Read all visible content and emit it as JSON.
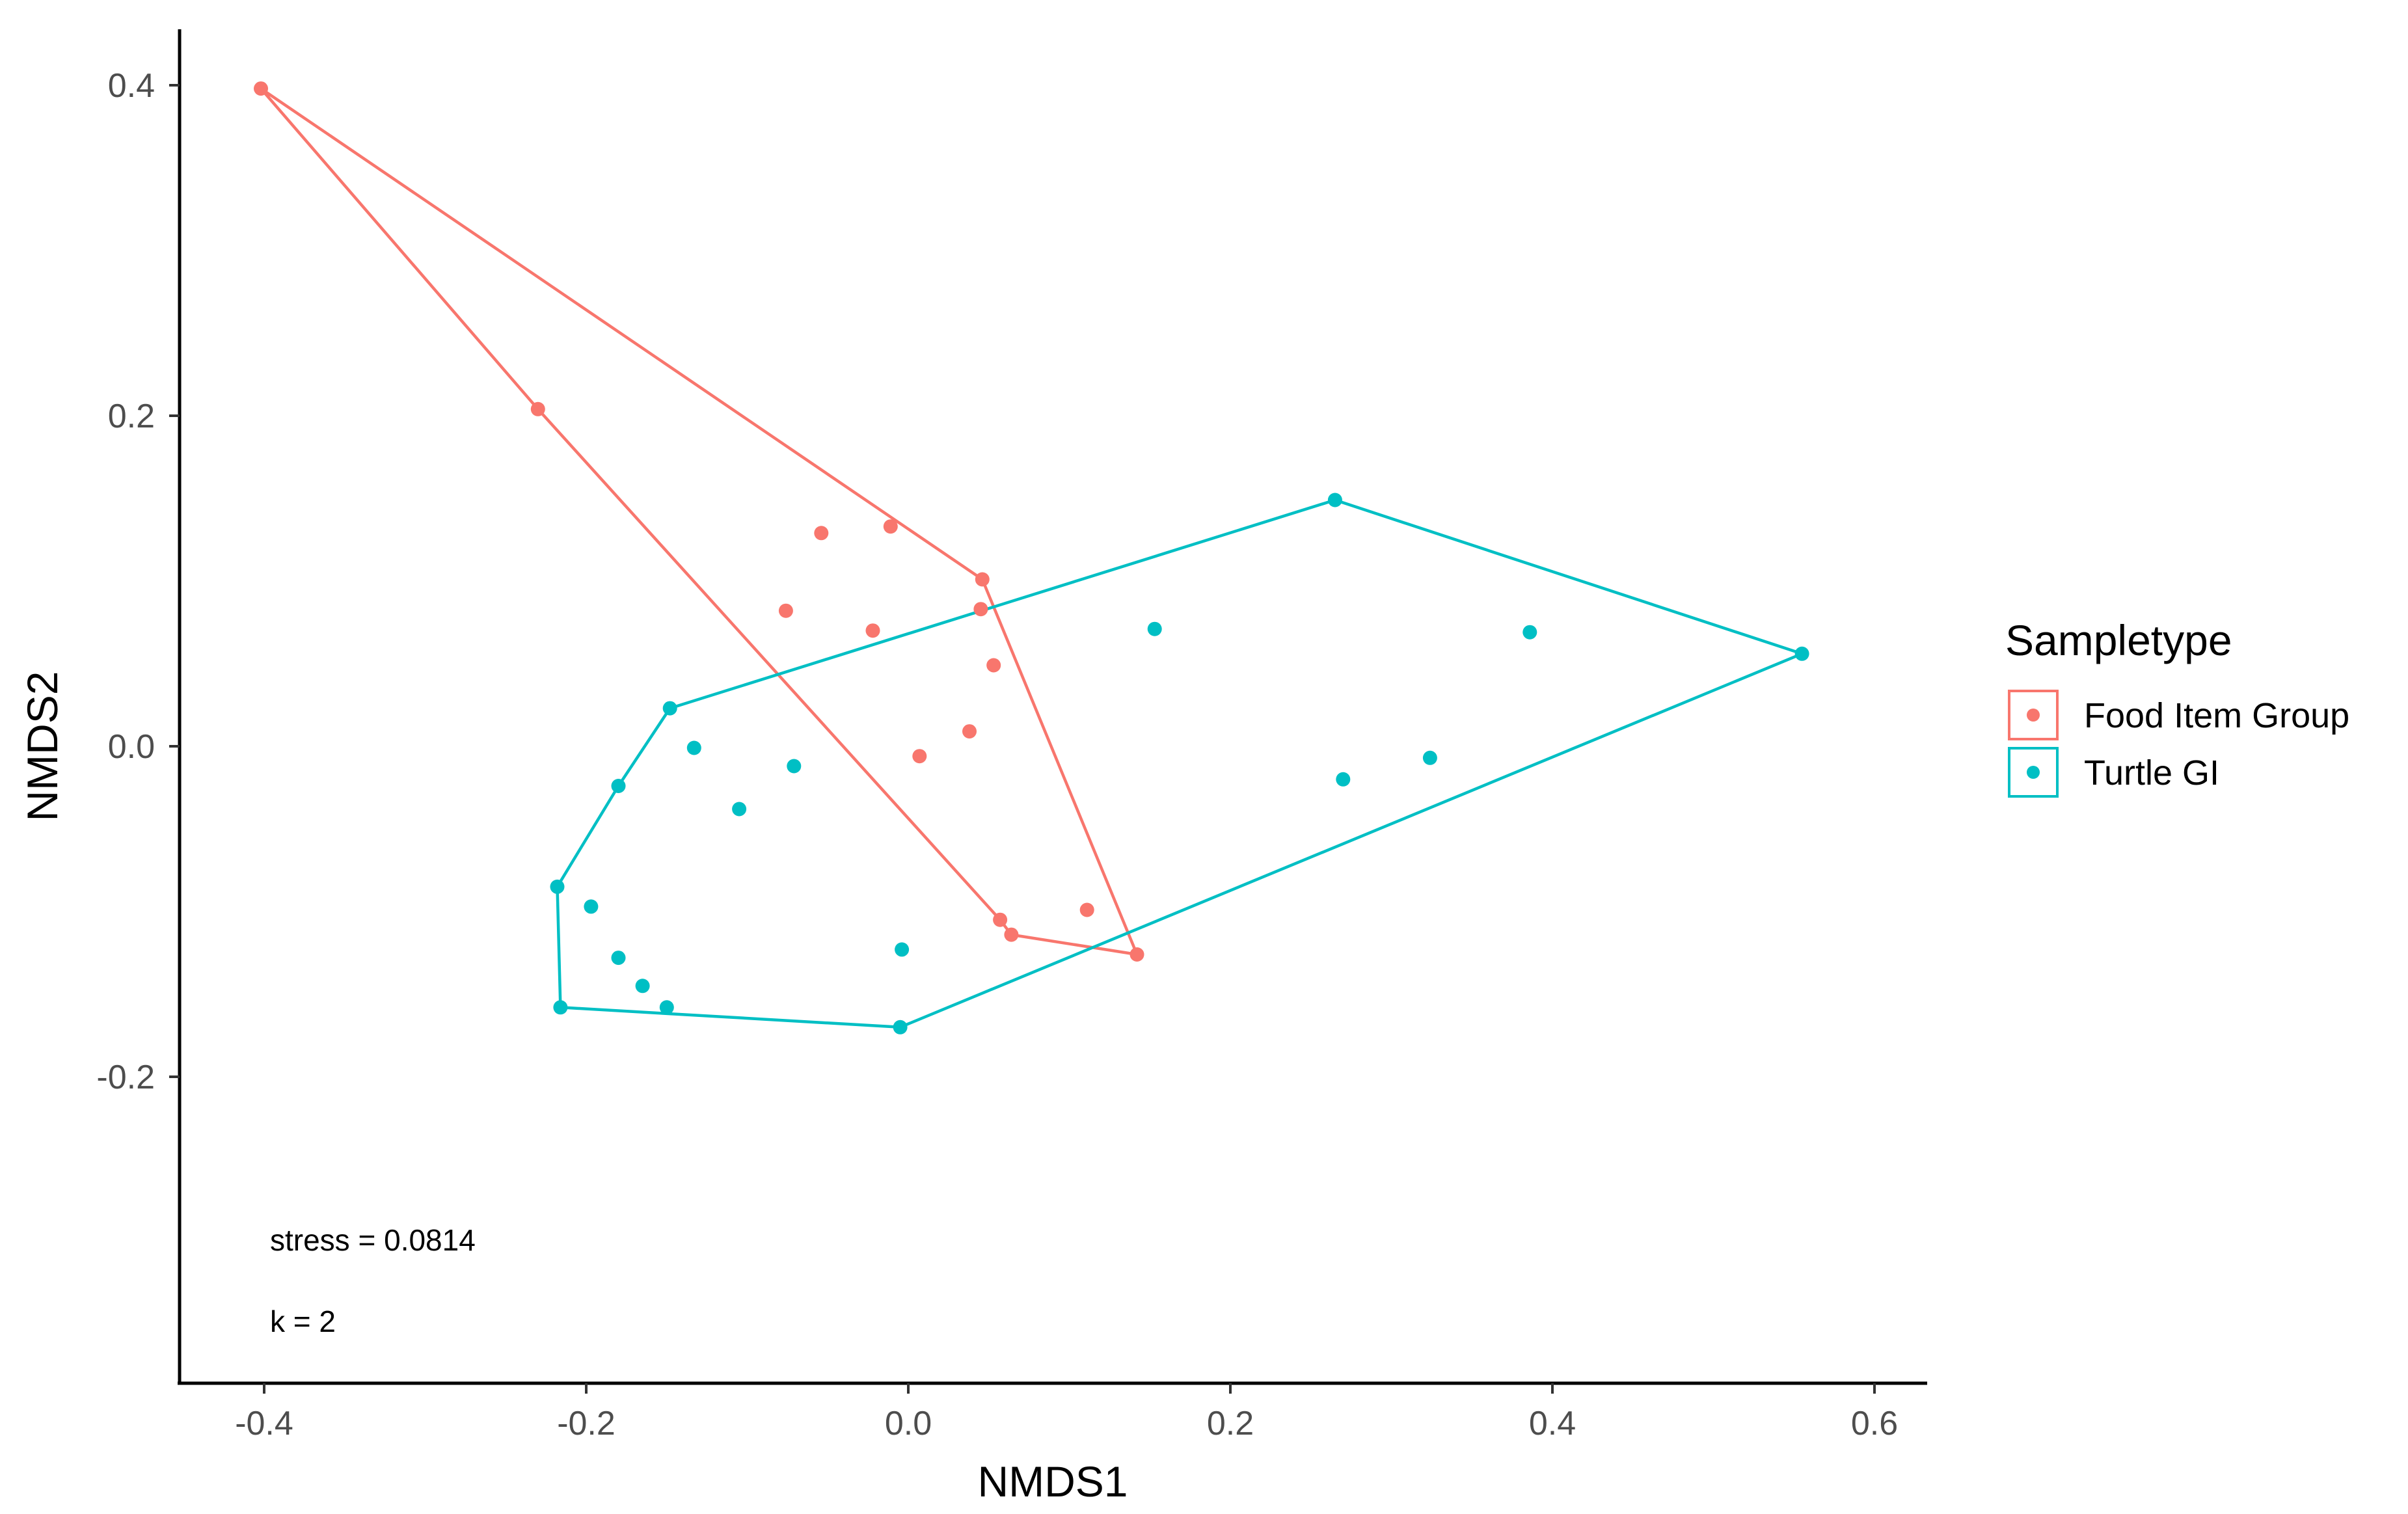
{
  "chart_data": {
    "type": "scatter",
    "xlabel": "NMDS1",
    "ylabel": "NMDS2",
    "xlim": [
      -0.45,
      0.625
    ],
    "ylim": [
      -0.39,
      0.435
    ],
    "x_ticks": [
      -0.4,
      -0.2,
      0.0,
      0.2,
      0.4,
      0.6
    ],
    "x_tick_labels": [
      "-0.4",
      "-0.2",
      "0.0",
      "0.2",
      "0.4",
      "0.6"
    ],
    "y_ticks": [
      -0.2,
      0.0,
      0.2,
      0.4
    ],
    "y_tick_labels": [
      "-0.2",
      "0.0",
      "0.2",
      "0.4"
    ],
    "grid": false,
    "legend": {
      "title": "Sampletype",
      "position": "right",
      "entries": [
        "Food Item Group",
        "Turtle GI"
      ]
    },
    "annotations": [
      "stress = 0.0814",
      "k = 2"
    ],
    "series": [
      {
        "name": "Food Item Group",
        "color": "#F8766D",
        "points": [
          [
            -0.402,
            0.398
          ],
          [
            -0.23,
            0.204
          ],
          [
            -0.054,
            0.129
          ],
          [
            -0.011,
            0.133
          ],
          [
            0.046,
            0.101
          ],
          [
            -0.076,
            0.082
          ],
          [
            -0.022,
            0.07
          ],
          [
            0.045,
            0.083
          ],
          [
            0.053,
            0.049
          ],
          [
            0.038,
            0.009
          ],
          [
            0.007,
            -0.006
          ],
          [
            0.057,
            -0.105
          ],
          [
            0.064,
            -0.114
          ],
          [
            0.111,
            -0.099
          ],
          [
            0.142,
            -0.126
          ]
        ],
        "hull": [
          [
            -0.402,
            0.398
          ],
          [
            0.046,
            0.101
          ],
          [
            0.142,
            -0.126
          ],
          [
            0.064,
            -0.114
          ],
          [
            0.057,
            -0.105
          ],
          [
            -0.23,
            0.204
          ]
        ]
      },
      {
        "name": "Turtle GI",
        "color": "#00BFC4",
        "points": [
          [
            0.265,
            0.149
          ],
          [
            0.555,
            0.056
          ],
          [
            0.153,
            0.071
          ],
          [
            0.386,
            0.069
          ],
          [
            -0.148,
            0.023
          ],
          [
            -0.133,
            -0.001
          ],
          [
            -0.071,
            -0.012
          ],
          [
            -0.105,
            -0.038
          ],
          [
            -0.18,
            -0.024
          ],
          [
            -0.218,
            -0.085
          ],
          [
            -0.197,
            -0.097
          ],
          [
            -0.18,
            -0.128
          ],
          [
            -0.165,
            -0.145
          ],
          [
            -0.15,
            -0.158
          ],
          [
            -0.216,
            -0.158
          ],
          [
            -0.004,
            -0.123
          ],
          [
            -0.005,
            -0.17
          ],
          [
            0.27,
            -0.02
          ],
          [
            0.324,
            -0.007
          ]
        ],
        "hull": [
          [
            -0.148,
            0.023
          ],
          [
            0.265,
            0.149
          ],
          [
            0.555,
            0.056
          ],
          [
            -0.005,
            -0.17
          ],
          [
            -0.216,
            -0.158
          ],
          [
            -0.218,
            -0.085
          ],
          [
            -0.18,
            -0.024
          ]
        ]
      }
    ]
  }
}
